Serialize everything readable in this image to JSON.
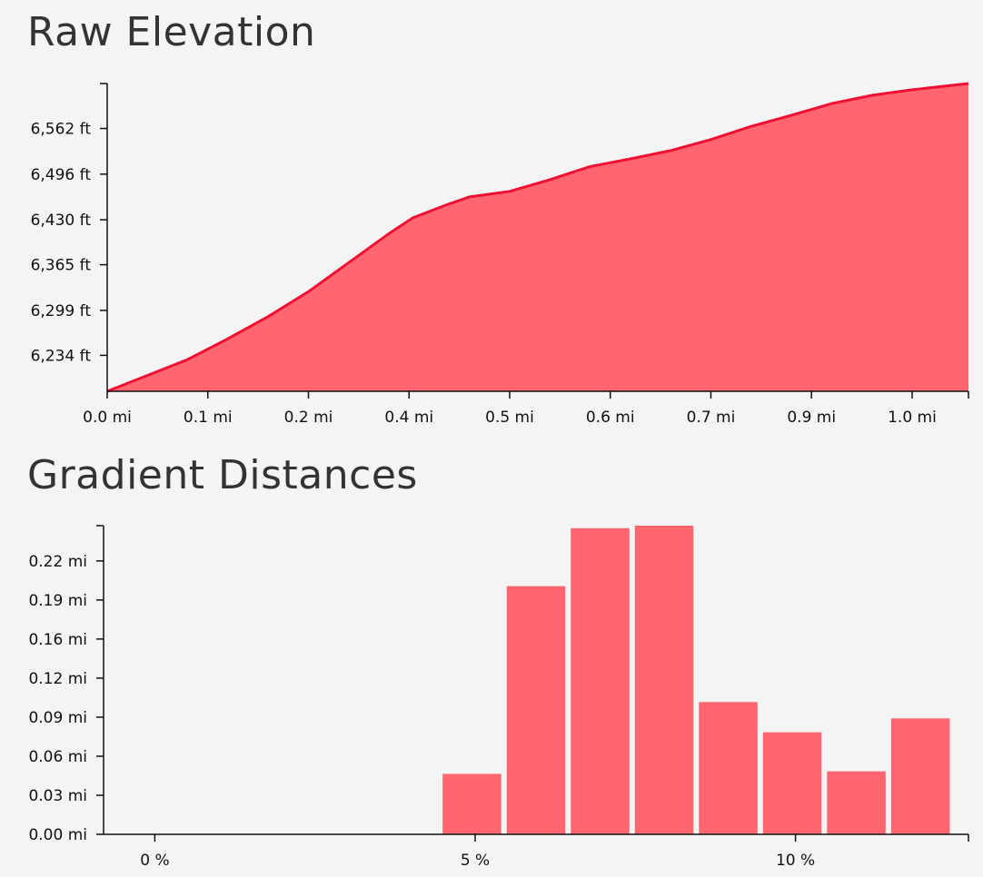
{
  "colors": {
    "area_fill": "#ff6670",
    "line_stroke": "#ee1133",
    "bar_fill": "#ff6670",
    "background": "#f4f4f4"
  },
  "titles": {
    "elevation": "Raw Elevation",
    "gradient": "Gradient Distances"
  },
  "chart_data": [
    {
      "type": "area",
      "title": "Raw Elevation",
      "y_unit": "ft",
      "x_unit": "mi",
      "ylim": [
        6182,
        6627
      ],
      "xlim": [
        0.0,
        1.07
      ],
      "y_ticks": [
        6234,
        6299,
        6365,
        6430,
        6496,
        6562
      ],
      "y_tick_labels": [
        "6,234 ft",
        "6,299 ft",
        "6,365 ft",
        "6,430 ft",
        "6,496 ft",
        "6,562 ft"
      ],
      "x_ticks": [
        0.0,
        0.125,
        0.25,
        0.375,
        0.5,
        0.625,
        0.75,
        0.875,
        1.0
      ],
      "x_tick_labels": [
        "0.0 mi",
        "0.1 mi",
        "0.2 mi",
        "0.4 mi",
        "0.5 mi",
        "0.6 mi",
        "0.7 mi",
        "0.9 mi",
        "1.0 mi"
      ],
      "series": [
        {
          "x": [
            0.0,
            0.05,
            0.1,
            0.15,
            0.2,
            0.25,
            0.3,
            0.35,
            0.38,
            0.42,
            0.45,
            0.5,
            0.55,
            0.6,
            0.65,
            0.7,
            0.75,
            0.8,
            0.85,
            0.9,
            0.95,
            1.0,
            1.07
          ],
          "values": [
            6182,
            6205,
            6228,
            6258,
            6290,
            6326,
            6368,
            6410,
            6433,
            6451,
            6463,
            6471,
            6488,
            6507,
            6518,
            6530,
            6546,
            6565,
            6581,
            6598,
            6610,
            6618,
            6627
          ]
        }
      ]
    },
    {
      "type": "bar",
      "title": "Gradient Distances",
      "y_unit": "mi",
      "x_unit": "%",
      "ylim": [
        0.0,
        0.245
      ],
      "xlim": [
        -0.8,
        12.7
      ],
      "y_ticks": [
        0.0,
        0.031,
        0.062,
        0.093,
        0.124,
        0.155,
        0.186,
        0.217
      ],
      "y_tick_labels": [
        "0.00 mi",
        "0.03 mi",
        "0.06 mi",
        "0.09 mi",
        "0.12 mi",
        "0.16 mi",
        "0.19 mi",
        "0.22 mi"
      ],
      "x_ticks": [
        0,
        5,
        10
      ],
      "x_tick_labels": [
        "0 %",
        "5 %",
        "10 %"
      ],
      "bin_width": 1.0,
      "categories": [
        4.95,
        5.95,
        6.95,
        7.95,
        8.95,
        9.95,
        10.95,
        11.95
      ],
      "values": [
        0.048,
        0.197,
        0.243,
        0.245,
        0.105,
        0.081,
        0.05,
        0.092
      ]
    }
  ]
}
